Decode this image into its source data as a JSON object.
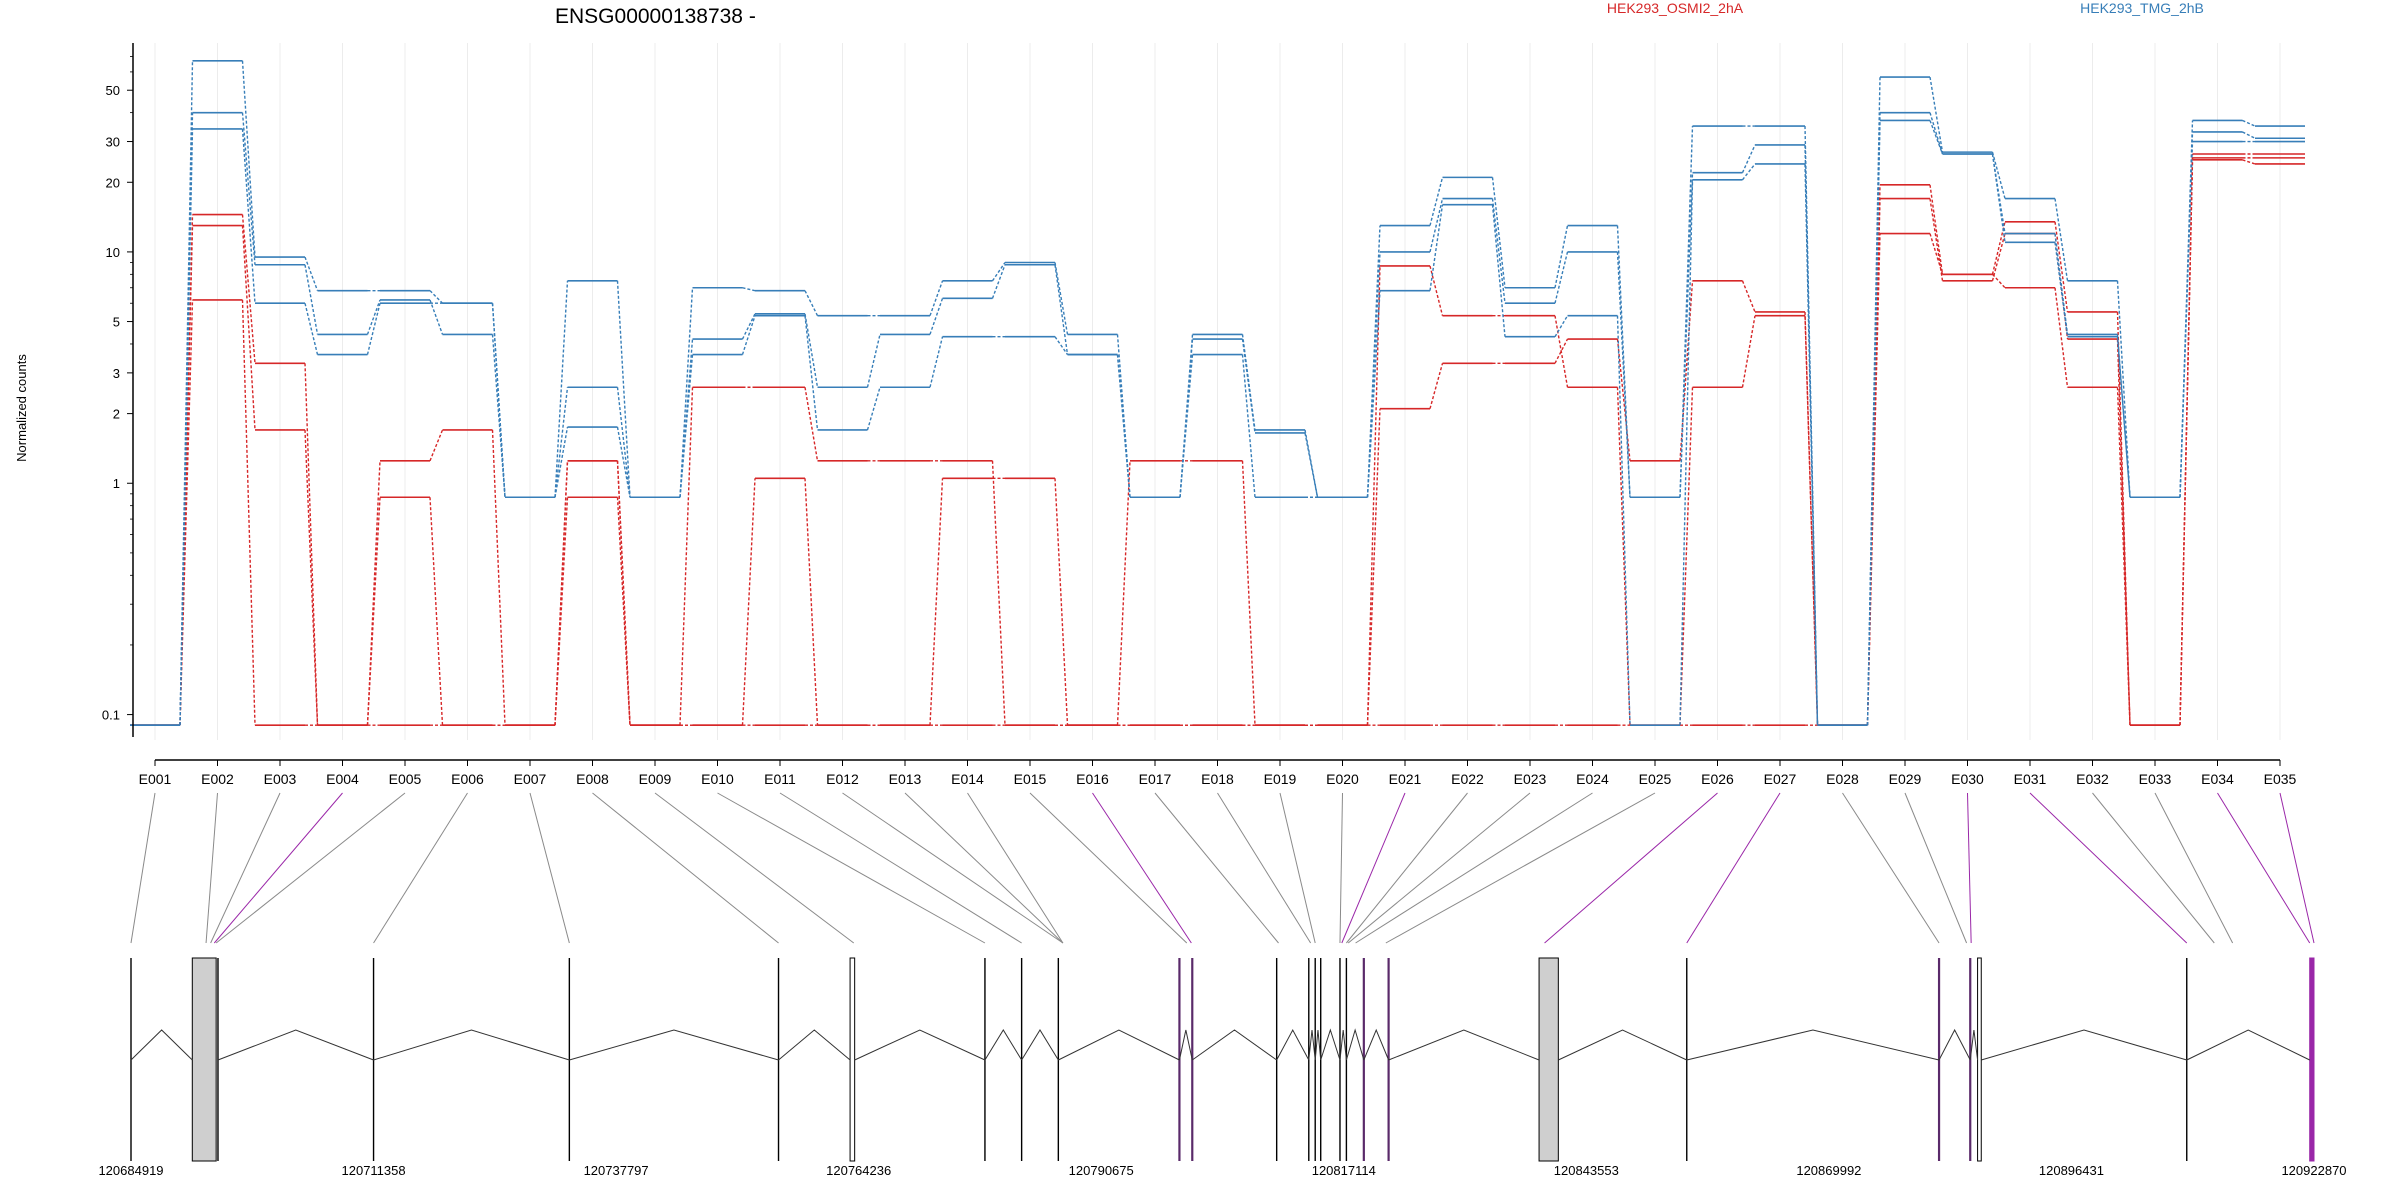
{
  "chart_data": {
    "type": "line",
    "title": "ENSG00000138738 -",
    "xlabel": "",
    "ylabel": "Normalized counts",
    "y_scale": "log",
    "ylim": [
      0.08,
      80
    ],
    "grid": true,
    "legend_placement": "top-right",
    "y_ticks": [
      "0.1",
      "1",
      "2",
      "3",
      "5",
      "10",
      "20",
      "30",
      "50"
    ],
    "y_tick_values": [
      0.1,
      1,
      2,
      3,
      5,
      10,
      20,
      30,
      50
    ],
    "categories": [
      "E001",
      "E002",
      "E003",
      "E004",
      "E005",
      "E006",
      "E007",
      "E008",
      "E009",
      "E010",
      "E011",
      "E012",
      "E013",
      "E014",
      "E015",
      "E016",
      "E017",
      "E018",
      "E019",
      "E020",
      "E021",
      "E022",
      "E023",
      "E024",
      "E025",
      "E026",
      "E027",
      "E028",
      "E029",
      "E030",
      "E031",
      "E032",
      "E033",
      "E034",
      "E035"
    ],
    "series": [
      {
        "group": "HEK293_OSMI2_2hA",
        "color": "#d62728",
        "values": [
          0.09,
          14.5,
          3.3,
          0.09,
          1.25,
          1.7,
          0.09,
          1.25,
          0.09,
          2.6,
          2.6,
          1.25,
          1.25,
          1.25,
          0.09,
          0.09,
          1.25,
          1.25,
          0.09,
          0.09,
          2.1,
          3.3,
          3.3,
          4.2,
          1.25,
          7.5,
          5.5,
          0.09,
          19.5,
          8.0,
          13.5,
          5.5,
          0.09,
          26.5,
          26.5
        ]
      },
      {
        "group": "HEK293_OSMI2_2hA",
        "color": "#d62728",
        "values": [
          0.09,
          13.0,
          1.7,
          0.09,
          0.09,
          0.09,
          0.09,
          1.25,
          0.09,
          0.09,
          0.09,
          0.09,
          0.09,
          0.09,
          0.09,
          0.09,
          0.09,
          0.09,
          0.09,
          0.09,
          8.7,
          5.3,
          5.3,
          2.6,
          0.09,
          2.6,
          5.3,
          0.09,
          17.0,
          7.5,
          12.0,
          4.2,
          0.09,
          25.5,
          25.5
        ]
      },
      {
        "group": "HEK293_OSMI2_2hA",
        "color": "#d62728",
        "values": [
          0.09,
          6.2,
          0.09,
          0.09,
          0.87,
          0.09,
          0.09,
          0.87,
          0.09,
          0.09,
          1.05,
          0.09,
          0.09,
          1.05,
          1.05,
          0.09,
          0.09,
          0.09,
          0.09,
          0.09,
          0.09,
          0.09,
          0.09,
          0.09,
          0.09,
          0.09,
          0.09,
          0.09,
          12.0,
          8.0,
          7.0,
          2.6,
          0.09,
          25.0,
          24.0
        ]
      },
      {
        "group": "HEK293_TMG_2hB",
        "color": "#377eb8",
        "values": [
          0.09,
          67.0,
          9.5,
          6.8,
          6.8,
          6.0,
          0.87,
          7.5,
          0.87,
          7.0,
          6.8,
          5.3,
          5.3,
          7.5,
          9.0,
          4.4,
          0.87,
          4.4,
          1.7,
          0.87,
          13.0,
          21.0,
          7.0,
          13.0,
          0.87,
          35.0,
          35.0,
          0.09,
          57.0,
          27.0,
          17.0,
          7.5,
          0.87,
          37.0,
          35.0
        ]
      },
      {
        "group": "HEK293_TMG_2hB",
        "color": "#377eb8",
        "values": [
          0.09,
          40.0,
          8.8,
          4.4,
          6.2,
          4.4,
          0.87,
          2.6,
          0.87,
          4.2,
          5.4,
          2.6,
          4.4,
          6.3,
          8.8,
          3.6,
          0.87,
          4.2,
          1.65,
          0.87,
          10.0,
          17.0,
          6.0,
          10.0,
          0.87,
          22.0,
          29.0,
          0.09,
          40.0,
          26.5,
          12.0,
          4.4,
          0.87,
          33.0,
          31.0
        ]
      },
      {
        "group": "HEK293_TMG_2hB",
        "color": "#377eb8",
        "values": [
          0.09,
          34.0,
          6.0,
          3.6,
          6.0,
          6.0,
          0.87,
          1.75,
          0.87,
          3.6,
          5.3,
          1.7,
          2.6,
          4.3,
          4.3,
          3.6,
          0.87,
          3.6,
          0.87,
          0.87,
          6.8,
          16.0,
          4.3,
          5.3,
          0.09,
          20.5,
          24.0,
          0.09,
          37.0,
          26.5,
          11.0,
          4.3,
          0.87,
          30.0,
          30.0
        ]
      }
    ],
    "legend": [
      {
        "name": "HEK293_OSMI2_2hA",
        "color": "#d62728"
      },
      {
        "name": "HEK293_TMG_2hB",
        "color": "#377eb8"
      }
    ],
    "gene_model": {
      "coordinate_labels": [
        "120684919",
        "120711358",
        "120737797",
        "120764236",
        "120790675",
        "120817114",
        "120843553",
        "120869992",
        "120896431",
        "120922870"
      ],
      "coordinate_range": [
        120684919,
        120922870
      ],
      "bin_genomic_positions": [
        120684919,
        120693100,
        120693600,
        120694000,
        120694200,
        120711358,
        120732700,
        120755500,
        120763700,
        120778000,
        120782000,
        120786500,
        120786500,
        120786500,
        120800000,
        120800500,
        120810000,
        120813500,
        120814000,
        120816700,
        120816900,
        120817400,
        120817600,
        120818400,
        120821700,
        120839000,
        120854500,
        120882000,
        120885000,
        120885500,
        120909000,
        120912000,
        120914000,
        120922400,
        120922870
      ],
      "highlighted_bins": [
        "E004",
        "E016",
        "E021",
        "E026",
        "E027",
        "E030",
        "E031",
        "E034",
        "E035"
      ],
      "highlight_color": "#9a27a8",
      "features": [
        {
          "kind": "line",
          "pos": 120684919
        },
        {
          "kind": "box",
          "start": 120691600,
          "end": 120694200,
          "fill": "#cfcfcf"
        },
        {
          "kind": "line",
          "pos": 120694400
        },
        {
          "kind": "line",
          "pos": 120711358
        },
        {
          "kind": "line",
          "pos": 120732700
        },
        {
          "kind": "line",
          "pos": 120755500
        },
        {
          "kind": "box",
          "start": 120763300,
          "end": 120763800,
          "fill": "#ffffff"
        },
        {
          "kind": "line",
          "pos": 120778000
        },
        {
          "kind": "line",
          "pos": 120782000
        },
        {
          "kind": "line",
          "pos": 120786000
        },
        {
          "kind": "line",
          "pos": 120799200,
          "purple": true
        },
        {
          "kind": "line",
          "pos": 120800600,
          "purple": true
        },
        {
          "kind": "line",
          "pos": 120809800
        },
        {
          "kind": "line",
          "pos": 120813300
        },
        {
          "kind": "line",
          "pos": 120814000
        },
        {
          "kind": "line",
          "pos": 120814600
        },
        {
          "kind": "line",
          "pos": 120816700
        },
        {
          "kind": "line",
          "pos": 120817400
        },
        {
          "kind": "line",
          "pos": 120819300,
          "purple": true
        },
        {
          "kind": "line",
          "pos": 120822000,
          "purple": true
        },
        {
          "kind": "box",
          "start": 120838400,
          "end": 120840500,
          "fill": "#cfcfcf"
        },
        {
          "kind": "line",
          "pos": 120854500
        },
        {
          "kind": "line",
          "pos": 120882000,
          "purple": true
        },
        {
          "kind": "line",
          "pos": 120885400,
          "purple": true
        },
        {
          "kind": "box",
          "start": 120886200,
          "end": 120886600,
          "fill": "#ffffff"
        },
        {
          "kind": "line",
          "pos": 120909000
        },
        {
          "kind": "box",
          "start": 120922400,
          "end": 120922870,
          "fill": "#9a27a8",
          "purple": true
        }
      ]
    }
  }
}
